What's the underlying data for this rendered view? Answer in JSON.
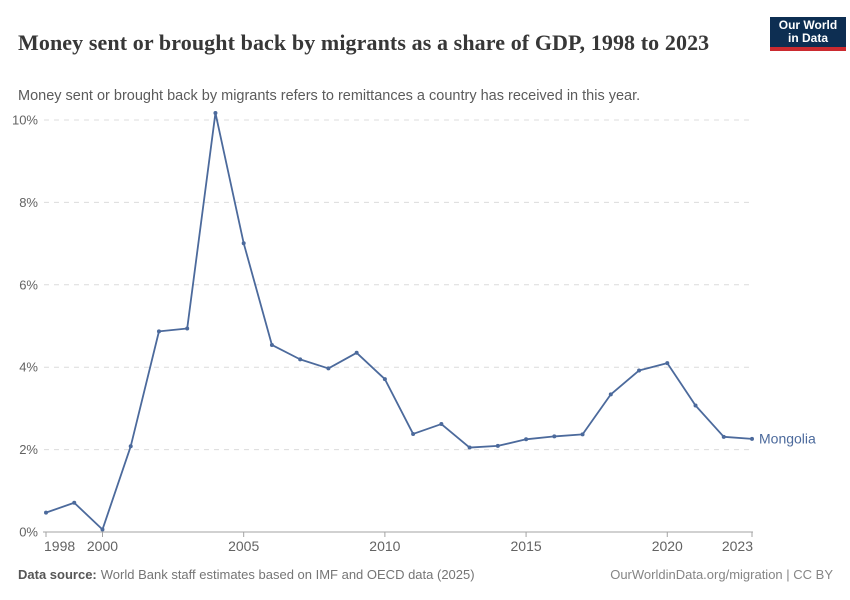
{
  "header": {
    "title": "Money sent or brought back by migrants as a share of GDP, 1998 to 2023",
    "subtitle": "Money sent or brought back by migrants refers to remittances a country has received in this year.",
    "logo": {
      "line1": "Our World",
      "line2": "in Data"
    }
  },
  "chart_data": {
    "type": "line",
    "title": "Money sent or brought back by migrants as a share of GDP, 1998 to 2023",
    "x": [
      1998,
      1999,
      2000,
      2001,
      2002,
      2003,
      2004,
      2005,
      2006,
      2007,
      2008,
      2009,
      2010,
      2011,
      2012,
      2013,
      2014,
      2015,
      2016,
      2017,
      2018,
      2019,
      2020,
      2021,
      2022,
      2023
    ],
    "series": [
      {
        "name": "Mongolia",
        "color": "#4c6a9c",
        "values": [
          0.47,
          0.71,
          0.06,
          2.08,
          4.87,
          4.94,
          10.17,
          7.01,
          4.54,
          4.19,
          3.97,
          4.35,
          3.71,
          2.38,
          2.62,
          2.05,
          2.09,
          2.25,
          2.32,
          2.37,
          3.34,
          3.92,
          4.1,
          3.07,
          2.31,
          2.26
        ]
      }
    ],
    "x_ticks": [
      1998,
      2000,
      2005,
      2010,
      2015,
      2020,
      2023
    ],
    "y_ticks": [
      0,
      2,
      4,
      6,
      8,
      10
    ],
    "y_tick_suffix": "%",
    "xlim": [
      1998,
      2023
    ],
    "ylim": [
      0,
      10.5
    ],
    "grid": "horizontal-dashed",
    "legend_position": "end-of-line"
  },
  "colors": {
    "line": "#4c6a9c",
    "grid": "#dcdcdc",
    "axis": "#a3a3a3",
    "axis_label": "#636363",
    "logo_bg": "#0d2e52",
    "logo_accent": "#cb2a2f"
  },
  "footer": {
    "source_label": "Data source:",
    "source_text": "World Bank staff estimates based on IMF and OECD data (2025)",
    "credit": "OurWorldinData.org/migration | CC BY"
  }
}
